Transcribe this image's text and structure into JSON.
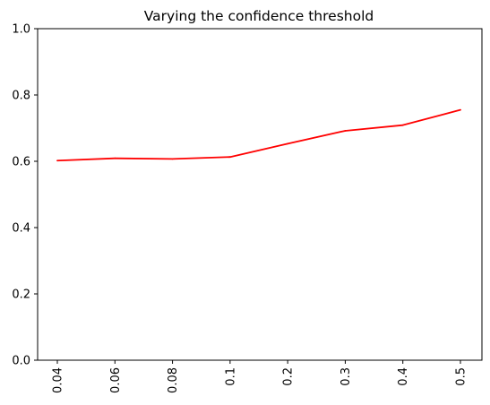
{
  "chart_data": {
    "type": "line",
    "title": "Varying the confidence threshold",
    "xlabel": "",
    "ylabel": "",
    "categories": [
      "0.04",
      "0.06",
      "0.08",
      "0.1",
      "0.2",
      "0.3",
      "0.4",
      "0.5"
    ],
    "series": [
      {
        "values": [
          0.602,
          0.609,
          0.607,
          0.613,
          0.653,
          0.692,
          0.709,
          0.755
        ],
        "color": "#ff0000"
      }
    ],
    "ylim": [
      0.0,
      1.0
    ],
    "yticks": [
      "0.0",
      "0.2",
      "0.4",
      "0.6",
      "0.8",
      "1.0"
    ],
    "xtick_rotation": "vertical",
    "grid": false,
    "legend": "none"
  }
}
